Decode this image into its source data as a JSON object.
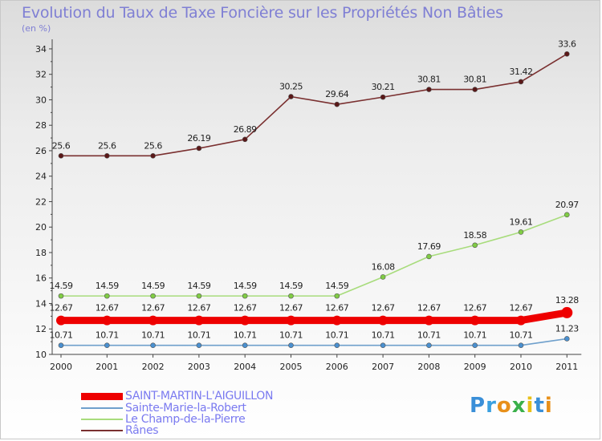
{
  "header": {
    "title": "Evolution du Taux de Taxe Foncière sur les Propriétés Non Bâties",
    "unit": "(en %)"
  },
  "logo": {
    "text": "Proxiti",
    "letter_colors": [
      "#3a8fd8",
      "#3aa0e0",
      "#e8901a",
      "#3ab04a",
      "#e8c01a",
      "#3a8fd8",
      "#e8901a"
    ]
  },
  "chart_data": {
    "type": "line",
    "title": "Evolution du Taux de Taxe Foncière sur les Propriétés Non Bâties",
    "ylabel": "(en %)",
    "xlabel": "",
    "ylim": [
      10,
      34.5
    ],
    "yticks": [
      10,
      12,
      14,
      16,
      18,
      20,
      22,
      24,
      26,
      28,
      30,
      32,
      34
    ],
    "grid": false,
    "legend": "bottom-left",
    "categories": [
      "2000",
      "2001",
      "2002",
      "2003",
      "2004",
      "2005",
      "2006",
      "2007",
      "2008",
      "2009",
      "2010",
      "2011"
    ],
    "series": [
      {
        "name": "SAINT-MARTIN-L'AIGUILLON",
        "color": "#ee0000",
        "marker_fill": "#ee0000",
        "thick": true,
        "values": [
          12.67,
          12.67,
          12.67,
          12.67,
          12.67,
          12.67,
          12.67,
          12.67,
          12.67,
          12.67,
          12.67,
          13.28
        ],
        "labels": [
          "12.67",
          "12.67",
          "12.67",
          "12.67",
          "12.67",
          "12.67",
          "12.67",
          "12.67",
          "12.67",
          "12.67",
          "12.67",
          "13.28"
        ]
      },
      {
        "name": "Sainte-Marie-la-Robert",
        "color": "#6fa0cc",
        "marker_fill": "#4a90d0",
        "thick": false,
        "values": [
          10.71,
          10.71,
          10.71,
          10.71,
          10.71,
          10.71,
          10.71,
          10.71,
          10.71,
          10.71,
          10.71,
          11.23
        ],
        "labels": [
          "10.71",
          "10.71",
          "10.71",
          "10.71",
          "10.71",
          "10.71",
          "10.71",
          "10.71",
          "10.71",
          "10.71",
          "10.71",
          "11.23"
        ]
      },
      {
        "name": "Le Champ-de-la-Pierre",
        "color": "#a8dc7c",
        "marker_fill": "#80cc44",
        "thick": false,
        "values": [
          14.59,
          14.59,
          14.59,
          14.59,
          14.59,
          14.59,
          14.59,
          16.08,
          17.69,
          18.58,
          19.61,
          20.97
        ],
        "labels": [
          "14.59",
          "14.59",
          "14.59",
          "14.59",
          "14.59",
          "14.59",
          "14.59",
          "16.08",
          "17.69",
          "18.58",
          "19.61",
          "20.97"
        ]
      },
      {
        "name": "Rânes",
        "color": "#7a3030",
        "marker_fill": "#5a1818",
        "thick": false,
        "values": [
          25.6,
          25.6,
          25.6,
          26.19,
          26.89,
          30.25,
          29.64,
          30.21,
          30.81,
          30.81,
          31.42,
          33.6
        ],
        "labels": [
          "25.6",
          "25.6",
          "25.6",
          "26.19",
          "26.89",
          "30.25",
          "29.64",
          "30.21",
          "30.81",
          "30.81",
          "31.42",
          "33.6"
        ]
      }
    ]
  }
}
